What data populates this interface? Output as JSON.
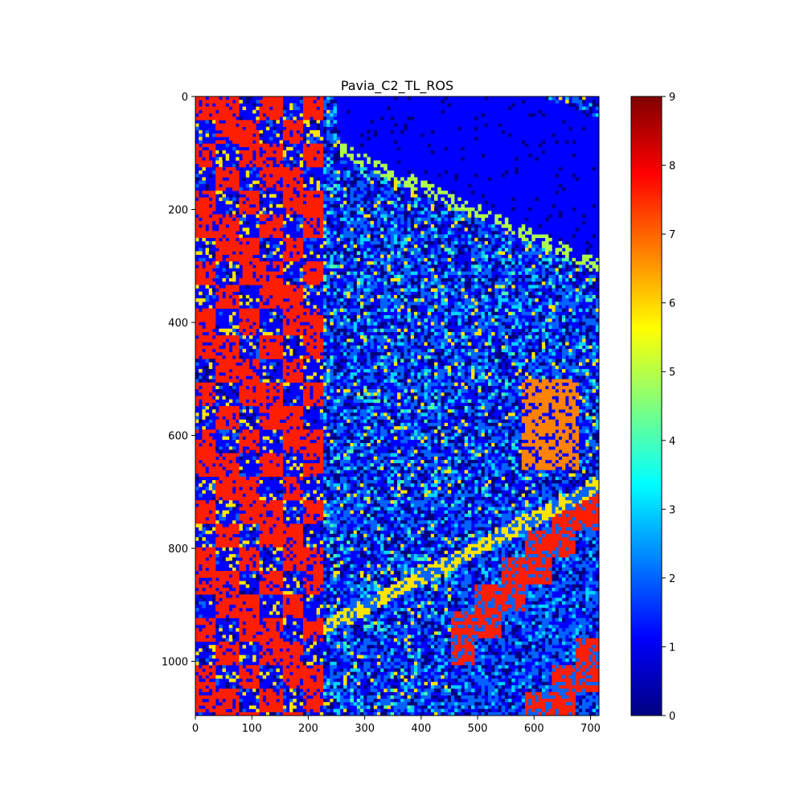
{
  "chart_data": {
    "type": "heatmap",
    "title": "Pavia_C2_TL_ROS",
    "xlabel": "",
    "ylabel": "",
    "xlim": [
      0,
      715
    ],
    "ylim": [
      1096,
      0
    ],
    "x_ticks": [
      0,
      100,
      200,
      300,
      400,
      500,
      600,
      700
    ],
    "y_ticks": [
      0,
      200,
      400,
      600,
      800,
      1000
    ],
    "colormap": "jet",
    "value_range": [
      0,
      9
    ],
    "colorbar_ticks": [
      0,
      1,
      2,
      3,
      4,
      5,
      6,
      7,
      8,
      9
    ],
    "classes": [
      {
        "value": 0,
        "color": "#00007f"
      },
      {
        "value": 1,
        "color": "#0000ff"
      },
      {
        "value": 2,
        "color": "#0063ff"
      },
      {
        "value": 3,
        "color": "#00d5ff"
      },
      {
        "value": 4,
        "color": "#4dffaa"
      },
      {
        "value": 5,
        "color": "#adff4a"
      },
      {
        "value": 6,
        "color": "#ffe500"
      },
      {
        "value": 7,
        "color": "#ff8200"
      },
      {
        "value": 8,
        "color": "#ff1e00"
      },
      {
        "value": 9,
        "color": "#7f0000"
      }
    ],
    "grid": false,
    "legend": "colorbar-right"
  }
}
